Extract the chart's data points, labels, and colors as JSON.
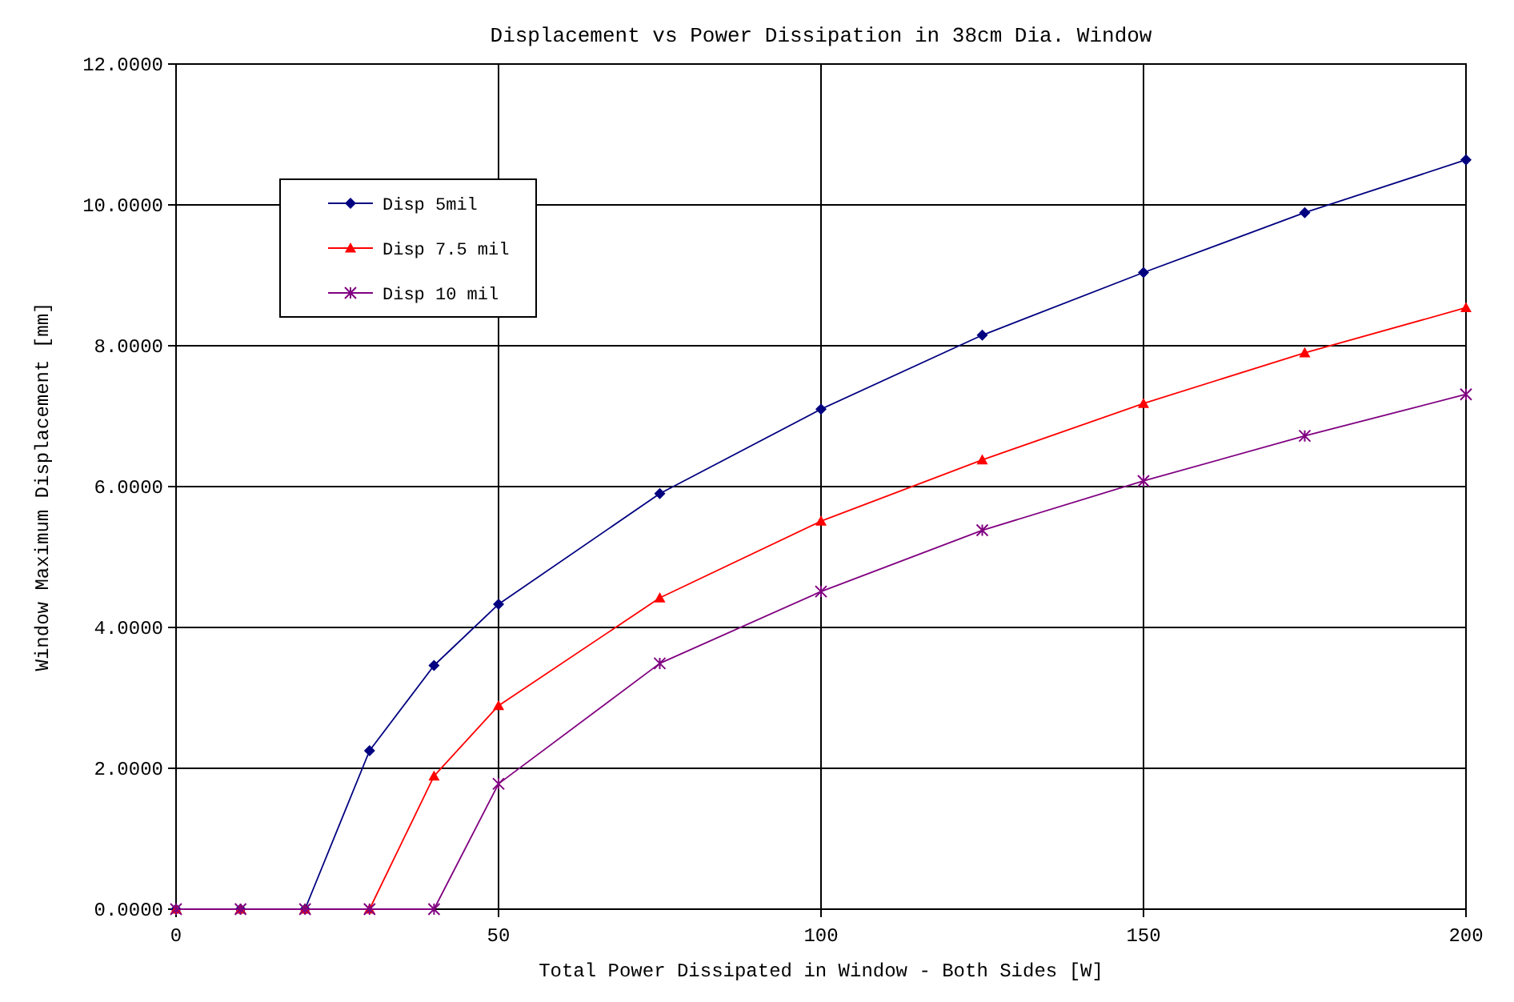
{
  "chart_data": {
    "type": "line",
    "title": "Displacement vs Power Dissipation in 38cm Dia. Window",
    "xlabel": "Total Power Dissipated in Window - Both Sides [W]",
    "ylabel": "Window Maximum Displacement [mm]",
    "x": [
      0,
      10,
      20,
      30,
      40,
      50,
      75,
      100,
      125,
      150,
      175,
      200
    ],
    "series": [
      {
        "name": "Disp 5mil",
        "color": "#000080",
        "marker": "diamond",
        "values": [
          0,
          0,
          0,
          2.25,
          3.46,
          4.33,
          5.9,
          7.1,
          8.15,
          9.04,
          9.89,
          10.64
        ]
      },
      {
        "name": "Disp 7.5 mil",
        "color": "#ff0000",
        "marker": "triangle",
        "values": [
          0,
          0,
          0,
          0,
          1.89,
          2.89,
          4.42,
          5.51,
          6.38,
          7.18,
          7.9,
          8.54
        ]
      },
      {
        "name": "Disp 10 mil",
        "color": "#800080",
        "marker": "cross",
        "values": [
          0,
          0,
          0,
          0,
          0,
          1.78,
          3.49,
          4.51,
          5.38,
          6.08,
          6.72,
          7.31
        ]
      }
    ],
    "xlim": [
      0,
      200
    ],
    "xticks": [
      0,
      50,
      100,
      150,
      200
    ],
    "ylim": [
      0,
      12
    ],
    "yticks": [
      {
        "value": 0,
        "label": "0.0000"
      },
      {
        "value": 2,
        "label": "2.0000"
      },
      {
        "value": 4,
        "label": "4.0000"
      },
      {
        "value": 6,
        "label": "6.0000"
      },
      {
        "value": 8,
        "label": "8.0000"
      },
      {
        "value": 10,
        "label": "10.0000"
      },
      {
        "value": 12,
        "label": "12.0000"
      }
    ],
    "grid": true,
    "legend": "top left",
    "line_style": "solid"
  }
}
